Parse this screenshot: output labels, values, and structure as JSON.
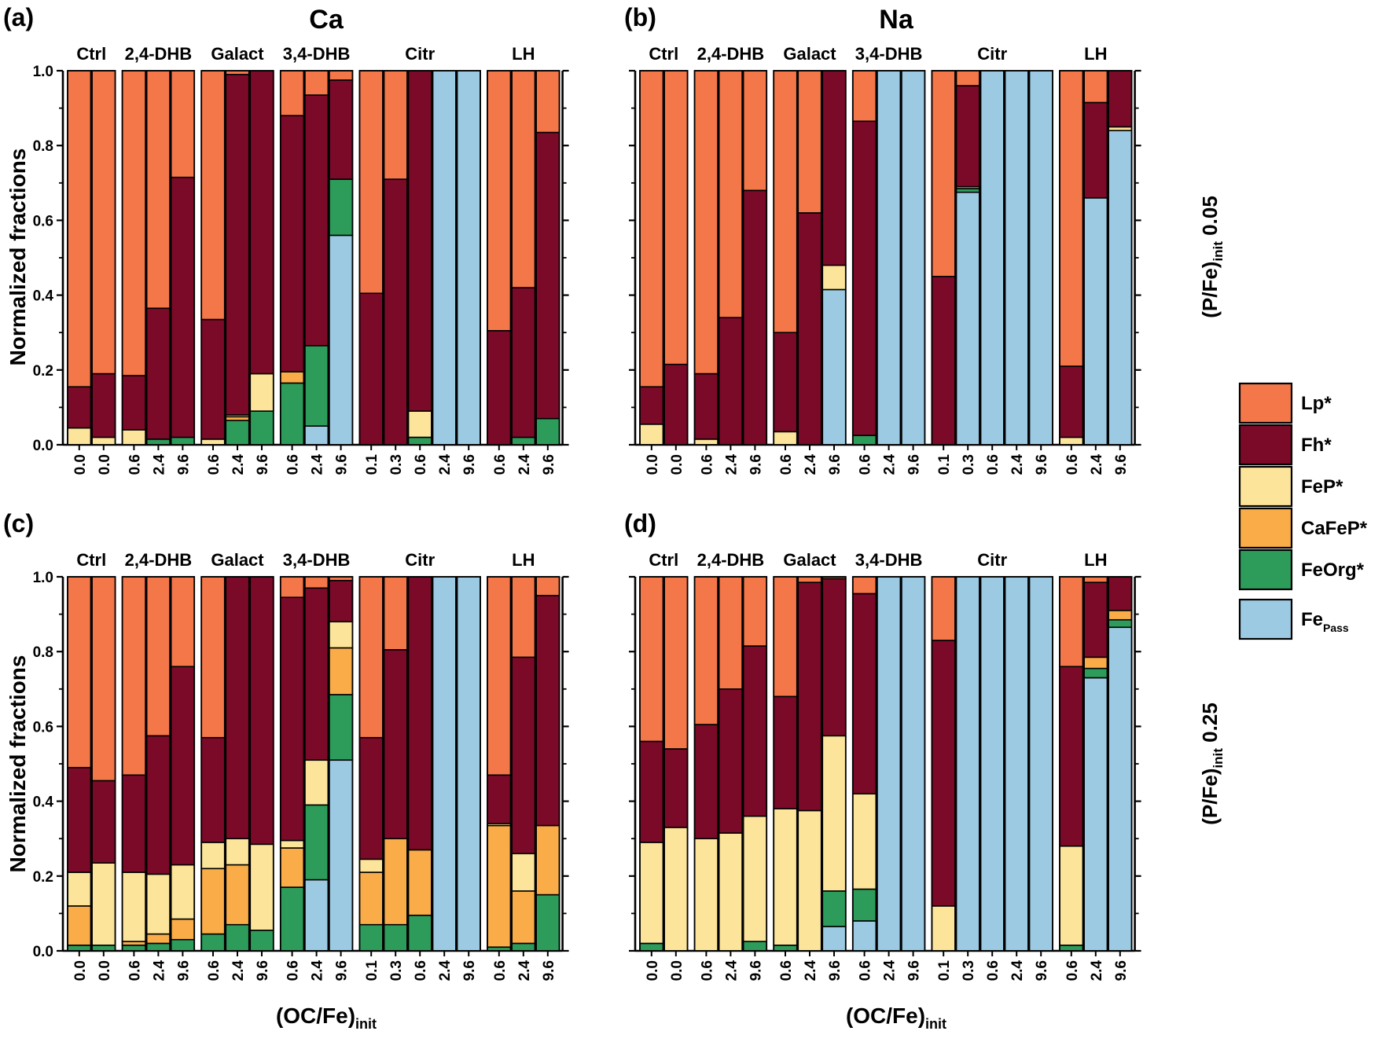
{
  "figure": {
    "columns_title": [
      "Ca",
      "Na"
    ],
    "row_labels": [
      {
        "main": "(P/Fe)",
        "sub": "init",
        "value": " 0.05"
      },
      {
        "main": "(P/Fe)",
        "sub": "init",
        "value": " 0.25"
      }
    ],
    "xlabel": {
      "main": "(OC/Fe)",
      "sub": "init"
    },
    "ylabel": "Normalized fractions",
    "yticks": [
      "0.0",
      "0.2",
      "0.4",
      "0.6",
      "0.8",
      "1.0"
    ]
  },
  "legend": [
    {
      "key": "Lp",
      "label": "Lp*",
      "color": "#f4774a"
    },
    {
      "key": "Fh",
      "label": "Fh*",
      "color": "#7b0a28"
    },
    {
      "key": "FeP",
      "label": "FeP*",
      "color": "#fce59a"
    },
    {
      "key": "CaFeP",
      "label": "CaFeP*",
      "color": "#f9ac47"
    },
    {
      "key": "FeOrg",
      "label": "FeOrg*",
      "color": "#2d9c5b"
    },
    {
      "key": "FePass",
      "label": "Fe",
      "sub": "Pass",
      "color": "#9ccae2"
    }
  ],
  "chart_data": [
    {
      "panel": "(a)",
      "type": "bar",
      "stacked": true,
      "title": "Ca",
      "ylim": [
        0,
        1
      ],
      "component_order": [
        "FeOrg",
        "CaFeP",
        "FeP",
        "Fh",
        "Lp",
        "FePass"
      ],
      "groups": [
        {
          "name": "Ctrl",
          "bars": [
            {
              "x": "0.0",
              "FeOrg": 0,
              "CaFeP": 0,
              "FeP": 0.045,
              "Fh": 0.11,
              "Lp": 0.845
            },
            {
              "x": "0.0",
              "FeOrg": 0,
              "CaFeP": 0,
              "FeP": 0.02,
              "Fh": 0.17,
              "Lp": 0.81
            }
          ]
        },
        {
          "name": "2,4-DHB",
          "bars": [
            {
              "x": "0.6",
              "FeOrg": 0,
              "CaFeP": 0,
              "FeP": 0.04,
              "Fh": 0.145,
              "Lp": 0.815
            },
            {
              "x": "2.4",
              "FeOrg": 0.015,
              "CaFeP": 0,
              "FeP": 0,
              "Fh": 0.35,
              "Lp": 0.635
            },
            {
              "x": "9.6",
              "FeOrg": 0.02,
              "CaFeP": 0,
              "FeP": 0,
              "Fh": 0.695,
              "Lp": 0.285
            }
          ]
        },
        {
          "name": "Galact",
          "bars": [
            {
              "x": "0.6",
              "FeOrg": 0,
              "CaFeP": 0,
              "FeP": 0.015,
              "Fh": 0.32,
              "Lp": 0.665
            },
            {
              "x": "2.4",
              "FeOrg": 0.065,
              "CaFeP": 0.01,
              "FeP": 0.005,
              "Fh": 0.91,
              "Lp": 0.01
            },
            {
              "x": "9.6",
              "FeOrg": 0.09,
              "CaFeP": 0,
              "FeP": 0.1,
              "Fh": 0.81,
              "Lp": 0
            }
          ]
        },
        {
          "name": "3,4-DHB",
          "bars": [
            {
              "x": "0.6",
              "FeOrg": 0.165,
              "CaFeP": 0.03,
              "FeP": 0,
              "Fh": 0.685,
              "Lp": 0.12
            },
            {
              "x": "2.4",
              "FePass": 0.05,
              "FeOrg": 0.215,
              "CaFeP": 0,
              "FeP": 0,
              "Fh": 0.67,
              "Lp": 0.065
            },
            {
              "x": "9.6",
              "FePass": 0.56,
              "FeOrg": 0.15,
              "CaFeP": 0,
              "FeP": 0,
              "Fh": 0.265,
              "Lp": 0.025
            }
          ]
        },
        {
          "name": "Citr",
          "bars": [
            {
              "x": "0.1",
              "FeOrg": 0,
              "CaFeP": 0,
              "FeP": 0,
              "Fh": 0.405,
              "Lp": 0.595
            },
            {
              "x": "0.3",
              "FeOrg": 0,
              "CaFeP": 0,
              "FeP": 0,
              "Fh": 0.71,
              "Lp": 0.29
            },
            {
              "x": "0.6",
              "FeOrg": 0.02,
              "CaFeP": 0,
              "FeP": 0.07,
              "Fh": 0.91,
              "Lp": 0
            },
            {
              "x": "2.4",
              "FePass": 1.0
            },
            {
              "x": "9.6",
              "FePass": 1.0
            }
          ]
        },
        {
          "name": "LH",
          "bars": [
            {
              "x": "0.6",
              "FeOrg": 0,
              "CaFeP": 0,
              "FeP": 0,
              "Fh": 0.305,
              "Lp": 0.695
            },
            {
              "x": "2.4",
              "FeOrg": 0.02,
              "CaFeP": 0,
              "FeP": 0,
              "Fh": 0.4,
              "Lp": 0.58
            },
            {
              "x": "9.6",
              "FeOrg": 0.07,
              "CaFeP": 0,
              "FeP": 0,
              "Fh": 0.765,
              "Lp": 0.165
            }
          ]
        }
      ]
    },
    {
      "panel": "(b)",
      "type": "bar",
      "stacked": true,
      "title": "Na",
      "ylim": [
        0,
        1
      ],
      "component_order": [
        "FeOrg",
        "CaFeP",
        "FeP",
        "Fh",
        "Lp",
        "FePass"
      ],
      "groups": [
        {
          "name": "Ctrl",
          "bars": [
            {
              "x": "0.0",
              "FeOrg": 0,
              "CaFeP": 0,
              "FeP": 0.055,
              "Fh": 0.1,
              "Lp": 0.845
            },
            {
              "x": "0.0",
              "FeOrg": 0,
              "CaFeP": 0,
              "FeP": 0,
              "Fh": 0.215,
              "Lp": 0.785
            }
          ]
        },
        {
          "name": "2,4-DHB",
          "bars": [
            {
              "x": "0.6",
              "FeOrg": 0,
              "CaFeP": 0,
              "FeP": 0.015,
              "Fh": 0.175,
              "Lp": 0.81
            },
            {
              "x": "2.4",
              "FeOrg": 0,
              "CaFeP": 0,
              "FeP": 0,
              "Fh": 0.34,
              "Lp": 0.66
            },
            {
              "x": "9.6",
              "FeOrg": 0,
              "CaFeP": 0,
              "FeP": 0,
              "Fh": 0.68,
              "Lp": 0.32
            }
          ]
        },
        {
          "name": "Galact",
          "bars": [
            {
              "x": "0.6",
              "FeOrg": 0,
              "CaFeP": 0,
              "FeP": 0.035,
              "Fh": 0.265,
              "Lp": 0.7
            },
            {
              "x": "2.4",
              "FeOrg": 0,
              "CaFeP": 0,
              "FeP": 0,
              "Fh": 0.62,
              "Lp": 0.38
            },
            {
              "x": "9.6",
              "FePass": 0.415,
              "FeOrg": 0,
              "CaFeP": 0,
              "FeP": 0.065,
              "Fh": 0.52,
              "Lp": 0
            }
          ]
        },
        {
          "name": "3,4-DHB",
          "bars": [
            {
              "x": "0.6",
              "FeOrg": 0.025,
              "CaFeP": 0,
              "FeP": 0,
              "Fh": 0.84,
              "Lp": 0.135
            },
            {
              "x": "2.4",
              "FePass": 1.0
            },
            {
              "x": "9.6",
              "FePass": 1.0
            }
          ]
        },
        {
          "name": "Citr",
          "bars": [
            {
              "x": "0.1",
              "FeOrg": 0,
              "CaFeP": 0,
              "FeP": 0,
              "Fh": 0.45,
              "Lp": 0.55
            },
            {
              "x": "0.3",
              "FePass": 0.675,
              "FeOrg": 0.01,
              "CaFeP": 0,
              "FeP": 0.005,
              "Fh": 0.27,
              "Lp": 0.04
            },
            {
              "x": "0.6",
              "FePass": 1.0
            },
            {
              "x": "2.4",
              "FePass": 1.0
            },
            {
              "x": "9.6",
              "FePass": 1.0
            }
          ]
        },
        {
          "name": "LH",
          "bars": [
            {
              "x": "0.6",
              "FeOrg": 0,
              "CaFeP": 0,
              "FeP": 0.02,
              "Fh": 0.19,
              "Lp": 0.79
            },
            {
              "x": "2.4",
              "FePass": 0.66,
              "FeOrg": 0,
              "CaFeP": 0,
              "FeP": 0,
              "Fh": 0.255,
              "Lp": 0.085
            },
            {
              "x": "9.6",
              "FePass": 0.84,
              "FeOrg": 0,
              "CaFeP": 0,
              "FeP": 0.01,
              "Fh": 0.15,
              "Lp": 0
            }
          ]
        }
      ]
    },
    {
      "panel": "(c)",
      "type": "bar",
      "stacked": true,
      "title": "",
      "ylim": [
        0,
        1
      ],
      "component_order": [
        "FeOrg",
        "CaFeP",
        "FeP",
        "Fh",
        "Lp",
        "FePass"
      ],
      "groups": [
        {
          "name": "Ctrl",
          "bars": [
            {
              "x": "0.0",
              "FeOrg": 0.015,
              "CaFeP": 0.105,
              "FeP": 0.09,
              "Fh": 0.28,
              "Lp": 0.51
            },
            {
              "x": "0.0",
              "FeOrg": 0.015,
              "CaFeP": 0,
              "FeP": 0.22,
              "Fh": 0.22,
              "Lp": 0.545
            }
          ]
        },
        {
          "name": "2,4-DHB",
          "bars": [
            {
              "x": "0.6",
              "FeOrg": 0.015,
              "CaFeP": 0.01,
              "FeP": 0.185,
              "Fh": 0.26,
              "Lp": 0.53
            },
            {
              "x": "2.4",
              "FeOrg": 0.02,
              "CaFeP": 0.025,
              "FeP": 0.16,
              "Fh": 0.37,
              "Lp": 0.425
            },
            {
              "x": "9.6",
              "FeOrg": 0.03,
              "CaFeP": 0.055,
              "FeP": 0.145,
              "Fh": 0.53,
              "Lp": 0.24
            }
          ]
        },
        {
          "name": "Galact",
          "bars": [
            {
              "x": "0.6",
              "FeOrg": 0.045,
              "CaFeP": 0.175,
              "FeP": 0.07,
              "Fh": 0.28,
              "Lp": 0.43
            },
            {
              "x": "2.4",
              "FeOrg": 0.07,
              "CaFeP": 0.16,
              "FeP": 0.07,
              "Fh": 0.7,
              "Lp": 0
            },
            {
              "x": "9.6",
              "FeOrg": 0.055,
              "CaFeP": 0,
              "FeP": 0.23,
              "Fh": 0.715,
              "Lp": 0
            }
          ]
        },
        {
          "name": "3,4-DHB",
          "bars": [
            {
              "x": "0.6",
              "FeOrg": 0.17,
              "CaFeP": 0.105,
              "FeP": 0.02,
              "Fh": 0.65,
              "Lp": 0.055
            },
            {
              "x": "2.4",
              "FePass": 0.19,
              "FeOrg": 0.2,
              "CaFeP": 0,
              "FeP": 0.12,
              "Fh": 0.46,
              "Lp": 0.03
            },
            {
              "x": "9.6",
              "FePass": 0.51,
              "FeOrg": 0.175,
              "CaFeP": 0.125,
              "FeP": 0.07,
              "Fh": 0.11,
              "Lp": 0.01
            }
          ]
        },
        {
          "name": "Citr",
          "bars": [
            {
              "x": "0.1",
              "FeOrg": 0.07,
              "CaFeP": 0.14,
              "FeP": 0.035,
              "Fh": 0.325,
              "Lp": 0.43
            },
            {
              "x": "0.3",
              "FeOrg": 0.07,
              "CaFeP": 0.23,
              "FeP": 0,
              "Fh": 0.505,
              "Lp": 0.195
            },
            {
              "x": "0.6",
              "FeOrg": 0.095,
              "CaFeP": 0.175,
              "FeP": 0,
              "Fh": 0.73,
              "Lp": 0
            },
            {
              "x": "2.4",
              "FePass": 1.0
            },
            {
              "x": "9.6",
              "FePass": 1.0
            }
          ]
        },
        {
          "name": "LH",
          "bars": [
            {
              "x": "0.6",
              "FeOrg": 0.01,
              "CaFeP": 0.325,
              "FeP": 0.005,
              "Fh": 0.13,
              "Lp": 0.53
            },
            {
              "x": "2.4",
              "FeOrg": 0.02,
              "CaFeP": 0.14,
              "FeP": 0.1,
              "Fh": 0.525,
              "Lp": 0.215
            },
            {
              "x": "9.6",
              "FeOrg": 0.15,
              "CaFeP": 0.185,
              "FeP": 0,
              "Fh": 0.615,
              "Lp": 0.05
            }
          ]
        }
      ]
    },
    {
      "panel": "(d)",
      "type": "bar",
      "stacked": true,
      "title": "",
      "ylim": [
        0,
        1
      ],
      "component_order": [
        "FeOrg",
        "CaFeP",
        "FeP",
        "Fh",
        "Lp",
        "FePass"
      ],
      "groups": [
        {
          "name": "Ctrl",
          "bars": [
            {
              "x": "0.0",
              "FeOrg": 0.02,
              "CaFeP": 0,
              "FeP": 0.27,
              "Fh": 0.27,
              "Lp": 0.44
            },
            {
              "x": "0.0",
              "FeOrg": 0,
              "CaFeP": 0,
              "FeP": 0.33,
              "Fh": 0.21,
              "Lp": 0.46
            }
          ]
        },
        {
          "name": "2,4-DHB",
          "bars": [
            {
              "x": "0.6",
              "FeOrg": 0,
              "CaFeP": 0,
              "FeP": 0.3,
              "Fh": 0.305,
              "Lp": 0.395
            },
            {
              "x": "2.4",
              "FeOrg": 0,
              "CaFeP": 0,
              "FeP": 0.315,
              "Fh": 0.385,
              "Lp": 0.3
            },
            {
              "x": "9.6",
              "FeOrg": 0.025,
              "CaFeP": 0,
              "FeP": 0.335,
              "Fh": 0.455,
              "Lp": 0.185
            }
          ]
        },
        {
          "name": "Galact",
          "bars": [
            {
              "x": "0.6",
              "FeOrg": 0.015,
              "CaFeP": 0,
              "FeP": 0.365,
              "Fh": 0.3,
              "Lp": 0.32
            },
            {
              "x": "2.4",
              "FeOrg": 0,
              "CaFeP": 0,
              "FeP": 0.375,
              "Fh": 0.61,
              "Lp": 0.015
            },
            {
              "x": "9.6",
              "FePass": 0.065,
              "FeOrg": 0.095,
              "CaFeP": 0,
              "FeP": 0.415,
              "Fh": 0.42,
              "Lp": 0.005
            }
          ]
        },
        {
          "name": "3,4-DHB",
          "bars": [
            {
              "x": "0.6",
              "FePass": 0.08,
              "FeOrg": 0.085,
              "CaFeP": 0,
              "FeP": 0.255,
              "Fh": 0.535,
              "Lp": 0.045
            },
            {
              "x": "2.4",
              "FePass": 1.0
            },
            {
              "x": "9.6",
              "FePass": 1.0
            }
          ]
        },
        {
          "name": "Citr",
          "bars": [
            {
              "x": "0.1",
              "FeOrg": 0,
              "CaFeP": 0,
              "FeP": 0.12,
              "Fh": 0.71,
              "Lp": 0.17
            },
            {
              "x": "0.3",
              "FePass": 1.0
            },
            {
              "x": "0.6",
              "FePass": 1.0
            },
            {
              "x": "2.4",
              "FePass": 1.0
            },
            {
              "x": "9.6",
              "FePass": 1.0
            }
          ]
        },
        {
          "name": "LH",
          "bars": [
            {
              "x": "0.6",
              "FeOrg": 0.015,
              "CaFeP": 0,
              "FeP": 0.265,
              "Fh": 0.48,
              "Lp": 0.24
            },
            {
              "x": "2.4",
              "FePass": 0.73,
              "FeOrg": 0.025,
              "CaFeP": 0.03,
              "FeP": 0,
              "Fh": 0.2,
              "Lp": 0.015
            },
            {
              "x": "9.6",
              "FePass": 0.865,
              "FeOrg": 0.02,
              "CaFeP": 0.025,
              "FeP": 0,
              "Fh": 0.09,
              "Lp": 0
            }
          ]
        }
      ]
    }
  ]
}
